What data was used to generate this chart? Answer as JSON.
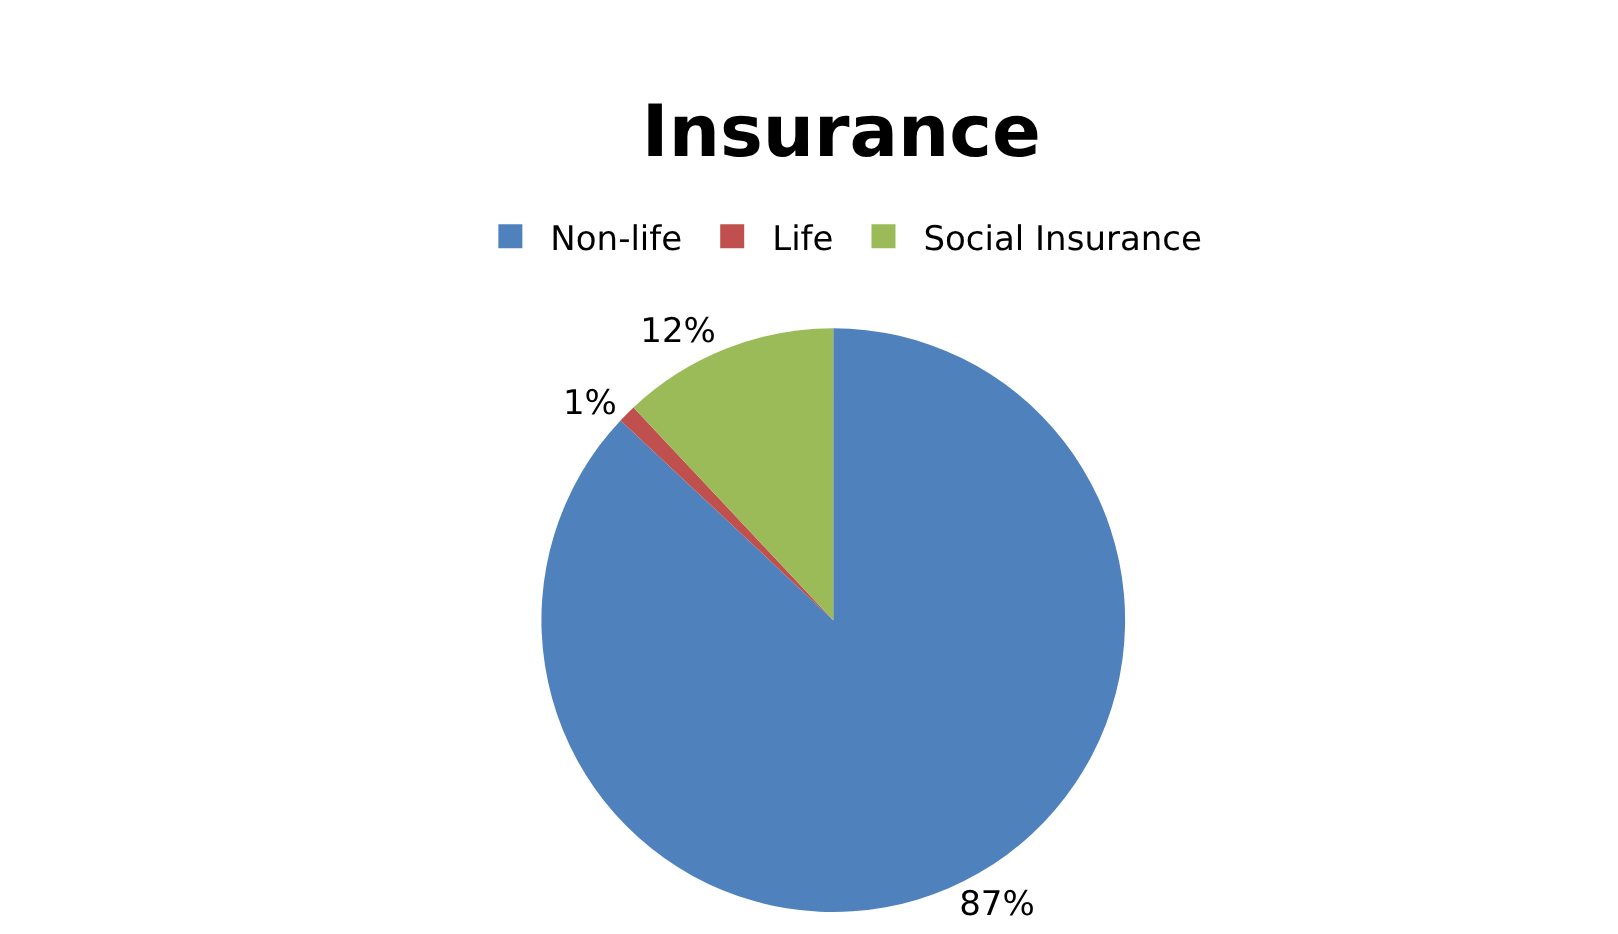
{
  "chart_data": {
    "type": "pie",
    "title": "Insurance",
    "categories": [
      "Non-life",
      "Life",
      "Social Insurance"
    ],
    "values": [
      87,
      1,
      12
    ],
    "colors": [
      "#4f81bd",
      "#c0504d",
      "#9bbb59"
    ],
    "value_labels": [
      "87%",
      "1%",
      "12%"
    ],
    "legend": "top"
  }
}
